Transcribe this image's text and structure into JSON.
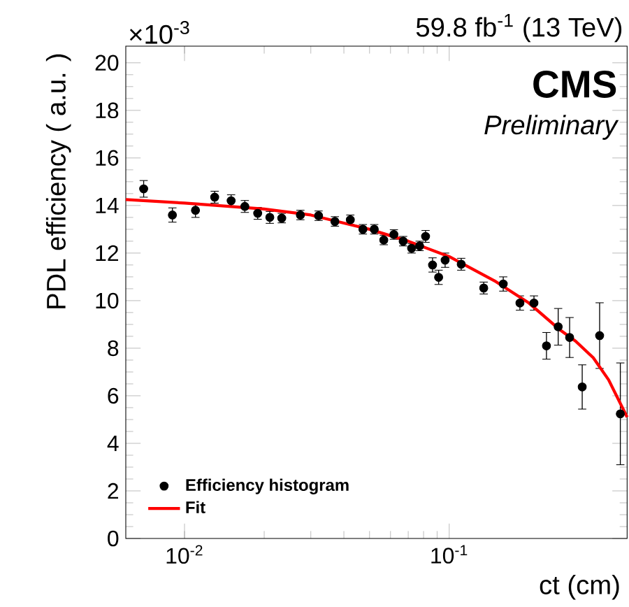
{
  "chart_data": {
    "type": "scatter",
    "title": "59.8 fb$^{-1}$ (13 TeV)",
    "xlabel": "ct (cm)",
    "ylabel": "PDL efficiency ( a.u. )",
    "annotations": [
      "CMS",
      "Preliminary",
      "×10$^{-3}$"
    ],
    "log": "x",
    "xlim": [
      0.006,
      0.47
    ],
    "ylim": [
      0,
      20.7
    ],
    "xticks": [
      {
        "value": 0.01,
        "label": "10$^{-2}$"
      },
      {
        "value": 0.1,
        "label": "10$^{-1}$"
      }
    ],
    "yticks": [
      0,
      2,
      4,
      6,
      8,
      10,
      12,
      14,
      16,
      18,
      20
    ],
    "legend": "bottom left",
    "marker": "circle",
    "series": [
      {
        "name": "Efficiency histogram",
        "color": "#000000",
        "x": [
          0.00701,
          0.009,
          0.011,
          0.013,
          0.015,
          0.0169,
          0.0189,
          0.021,
          0.0233,
          0.0274,
          0.0321,
          0.037,
          0.0423,
          0.0472,
          0.0521,
          0.0566,
          0.0618,
          0.067,
          0.0721,
          0.0773,
          0.0814,
          0.0865,
          0.0912,
          0.0965,
          0.111,
          0.135,
          0.16,
          0.185,
          0.209,
          0.233,
          0.258,
          0.285,
          0.318,
          0.37,
          0.443
        ],
        "values": [
          14.7,
          13.6,
          13.8,
          14.35,
          14.2,
          13.96,
          13.67,
          13.5,
          13.47,
          13.6,
          13.57,
          13.33,
          13.4,
          13.0,
          13.0,
          12.55,
          12.78,
          12.5,
          12.2,
          12.3,
          12.7,
          11.5,
          10.98,
          11.7,
          11.53,
          10.53,
          10.7,
          9.9,
          9.9,
          8.1,
          8.9,
          8.45,
          6.37,
          8.53,
          5.24
        ],
        "errors": [
          0.35,
          0.3,
          0.3,
          0.25,
          0.25,
          0.25,
          0.25,
          0.25,
          0.2,
          0.2,
          0.2,
          0.2,
          0.2,
          0.2,
          0.2,
          0.2,
          0.2,
          0.2,
          0.2,
          0.2,
          0.25,
          0.3,
          0.3,
          0.3,
          0.25,
          0.25,
          0.3,
          0.3,
          0.3,
          0.56,
          0.77,
          0.84,
          0.93,
          1.38,
          2.14
        ]
      },
      {
        "name": "Fit",
        "type": "line",
        "marker": "none",
        "color": "#ff0000",
        "x": [
          0.006,
          0.01,
          0.02,
          0.03,
          0.05,
          0.07,
          0.1,
          0.15,
          0.2,
          0.26,
          0.3,
          0.35,
          0.4,
          0.47
        ],
        "values": [
          14.25,
          14.1,
          13.85,
          13.6,
          13.0,
          12.5,
          11.85,
          10.8,
          9.9,
          8.8,
          8.3,
          7.6,
          6.67,
          5.1
        ]
      }
    ]
  }
}
